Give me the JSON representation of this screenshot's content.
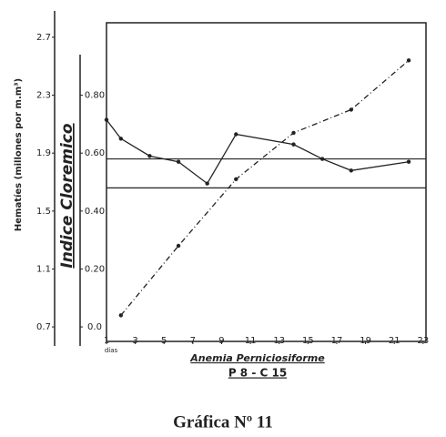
{
  "chart_data": {
    "type": "line",
    "title": "Gráfica Nº 11",
    "x_label": "Anemia Perniciosiforme",
    "subtitle": "P 8 - C 15",
    "x_unit": "días",
    "y_label": "Hematíes (millones por m.m³)",
    "y2_label": "Indice Cloremico",
    "xlim": [
      1,
      23.2
    ],
    "xticks": [
      1,
      3,
      5,
      7,
      9,
      11,
      13,
      15,
      17,
      19,
      21,
      23
    ],
    "ylim": [
      0.6,
      2.8
    ],
    "yticks": [
      0.7,
      1.1,
      1.5,
      1.9,
      2.3,
      2.7
    ],
    "y2lim": [
      -0.05,
      1.05
    ],
    "y2ticks": [
      {
        "value": 0,
        "label": "0.0"
      },
      {
        "value": 0.2,
        "label": "0.20"
      },
      {
        "value": 0.4,
        "label": "0.40"
      },
      {
        "value": 0.6,
        "label": "0.60"
      },
      {
        "value": 0.8,
        "label": "0.80"
      }
    ],
    "reference_lines": [
      0.58,
      0.48
    ],
    "series": [
      {
        "color": "#222222",
        "dash": false,
        "x": [
          1,
          2,
          4,
          6,
          8,
          10,
          14,
          16,
          18,
          22
        ],
        "values": [
          2.13,
          2.0,
          1.88,
          1.84,
          1.69,
          2.03,
          1.96,
          1.86,
          1.78,
          1.84
        ]
      },
      {
        "color": "#222222",
        "dash": true,
        "axis": "y2",
        "x": [
          2,
          6,
          10,
          14,
          18,
          22
        ],
        "values": [
          0.04,
          0.28,
          0.51,
          0.67,
          0.75,
          0.92
        ]
      }
    ]
  }
}
